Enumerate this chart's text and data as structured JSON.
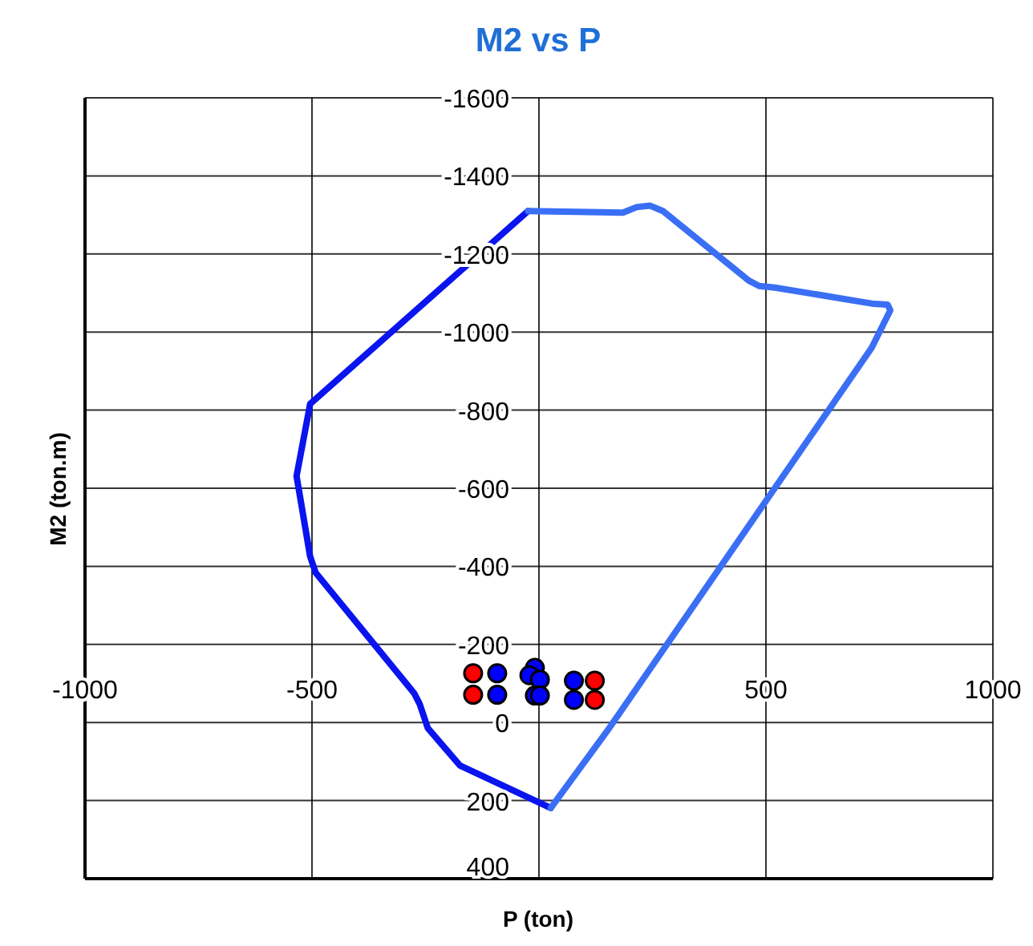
{
  "chart_data": {
    "type": "line",
    "title": "M2 vs P",
    "xlabel": "P (ton)",
    "ylabel": "M2 (ton.m)",
    "xlim": [
      -1000,
      1000
    ],
    "xticks": [
      -1000,
      -500,
      {
        "value": 0,
        "label": null
      },
      500,
      1000
    ],
    "ylim": [
      400,
      -1600
    ],
    "yticks": [
      -1600,
      -1400,
      -1200,
      -1000,
      -800,
      -600,
      -400,
      -200,
      0,
      200,
      400
    ],
    "grid": true,
    "series": [
      {
        "color": "#0a14ee",
        "marker": "none",
        "x": [
          -24,
          -504,
          -534,
          -504,
          -492,
          -275,
          -263,
          -245,
          -174,
          26
        ],
        "values": [
          -1310,
          -816,
          -631,
          -425,
          -384,
          -75,
          -48,
          14,
          110,
          219
        ]
      },
      {
        "color": "#3a6ff5",
        "marker": "none",
        "x": [
          26,
          155,
          733,
          774,
          768,
          733,
          520,
          485,
          462,
          273,
          244,
          215,
          185,
          -24
        ],
        "values": [
          219,
          14,
          -960,
          -1056,
          -1070,
          -1073,
          -1114,
          -1118,
          -1132,
          -1310,
          -1324,
          -1320,
          -1306,
          -1310
        ]
      },
      {
        "type": "scatter",
        "color": "#ff0000",
        "marker": "circle",
        "x": [
          -145,
          -145,
          123,
          123
        ],
        "values": [
          -126,
          -71,
          -107,
          -58
        ]
      },
      {
        "type": "scatter",
        "color": "#0000ff",
        "marker": "circle",
        "x": [
          -92,
          -92,
          77,
          77,
          -9,
          -21,
          2,
          -9,
          2
        ],
        "values": [
          -126,
          -71,
          -107,
          -58,
          -140,
          -121,
          -110,
          -69,
          -69
        ]
      }
    ]
  }
}
